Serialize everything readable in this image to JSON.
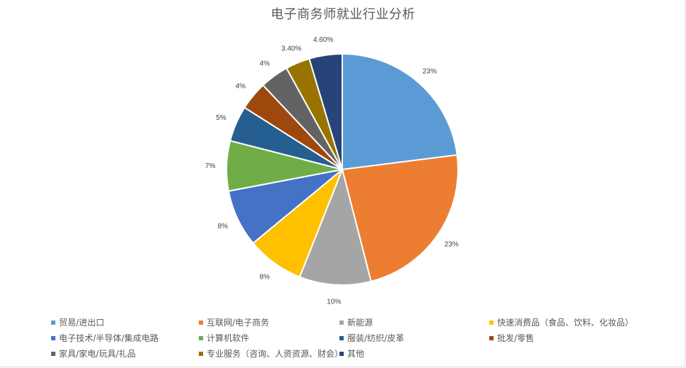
{
  "chart": {
    "title": "电子商务师就业行业分析"
  },
  "chart_data": {
    "type": "pie",
    "title": "电子商务师就业行业分析",
    "categories": [
      "贸易/进出口",
      "互联网/电子商务",
      "新能源",
      "快速消费品（食品、饮料、化妆品）",
      "电子技术/半导体/集成电路",
      "计算机软件",
      "服装/纺织/皮革",
      "批发/零售",
      "家具/家电/玩具/礼品",
      "专业服务（咨询、人资资源、财会）",
      "其他"
    ],
    "values": [
      23,
      23,
      10,
      8,
      8,
      7,
      5,
      4,
      4,
      3.4,
      4.6
    ],
    "labels": [
      "23%",
      "23%",
      "10%",
      "8%",
      "8%",
      "7%",
      "5%",
      "4%",
      "4%",
      "3.40%",
      "4.60%"
    ],
    "colors": [
      "#5b9bd5",
      "#ed7d31",
      "#a5a5a5",
      "#ffc000",
      "#4472c4",
      "#70ad47",
      "#255e91",
      "#9e480e",
      "#636363",
      "#997300",
      "#264478"
    ],
    "legend_position": "bottom",
    "start_angle": 0,
    "direction": "clockwise"
  },
  "legend": {
    "items": [
      {
        "label": "贸易/进出口",
        "color": "#5b9bd5"
      },
      {
        "label": "互联网/电子商务",
        "color": "#ed7d31"
      },
      {
        "label": "新能源",
        "color": "#a5a5a5"
      },
      {
        "label": "快速消费品（食品、饮料、化妆品）",
        "color": "#ffc000"
      },
      {
        "label": "电子技术/半导体/集成电路",
        "color": "#4472c4"
      },
      {
        "label": "计算机软件",
        "color": "#70ad47"
      },
      {
        "label": "服装/纺织/皮革",
        "color": "#255e91"
      },
      {
        "label": "批发/零售",
        "color": "#9e480e"
      },
      {
        "label": "家具/家电/玩具/礼品",
        "color": "#636363"
      },
      {
        "label": "专业服务（咨询、人资资源、财会）",
        "color": "#997300"
      },
      {
        "label": "其他",
        "color": "#264478"
      }
    ]
  }
}
